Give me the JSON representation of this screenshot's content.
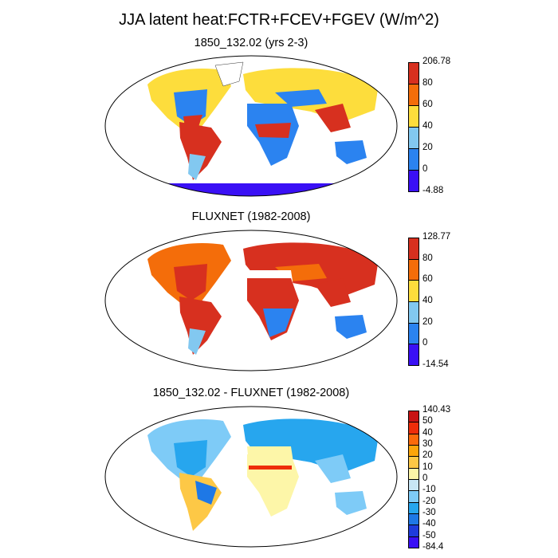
{
  "title": "JJA latent heat:FCTR+FCEV+FGEV (W/m^2)",
  "panels": [
    {
      "title": "1850_132.02 (yrs 2-3)",
      "colorbar": {
        "labels": [
          "206.78",
          "80",
          "60",
          "40",
          "20",
          "0",
          "-4.88"
        ],
        "colors": [
          "#d7301f",
          "#f46d0a",
          "#fddd3c",
          "#82c8f0",
          "#2b83f0",
          "#3a10f5"
        ]
      }
    },
    {
      "title": "FLUXNET (1982-2008)",
      "colorbar": {
        "labels": [
          "128.77",
          "80",
          "60",
          "40",
          "20",
          "0",
          "-14.54"
        ],
        "colors": [
          "#d7301f",
          "#f46d0a",
          "#fddd3c",
          "#82c8f0",
          "#2b83f0",
          "#3a10f5"
        ]
      }
    },
    {
      "title": "1850_132.02 - FLUXNET (1982-2008)",
      "colorbar": {
        "labels": [
          "140.43",
          "50",
          "40",
          "30",
          "20",
          "10",
          "0",
          "-10",
          "-20",
          "-30",
          "-40",
          "-50",
          "-84.4"
        ],
        "colors": [
          "#c81414",
          "#ee2d0a",
          "#fb6a0a",
          "#fca50a",
          "#fdc846",
          "#fdf6a8",
          "#c8e6f5",
          "#7ecbf7",
          "#27a6ee",
          "#1e78e6",
          "#1e3cdc",
          "#3a10f5"
        ]
      }
    }
  ]
}
